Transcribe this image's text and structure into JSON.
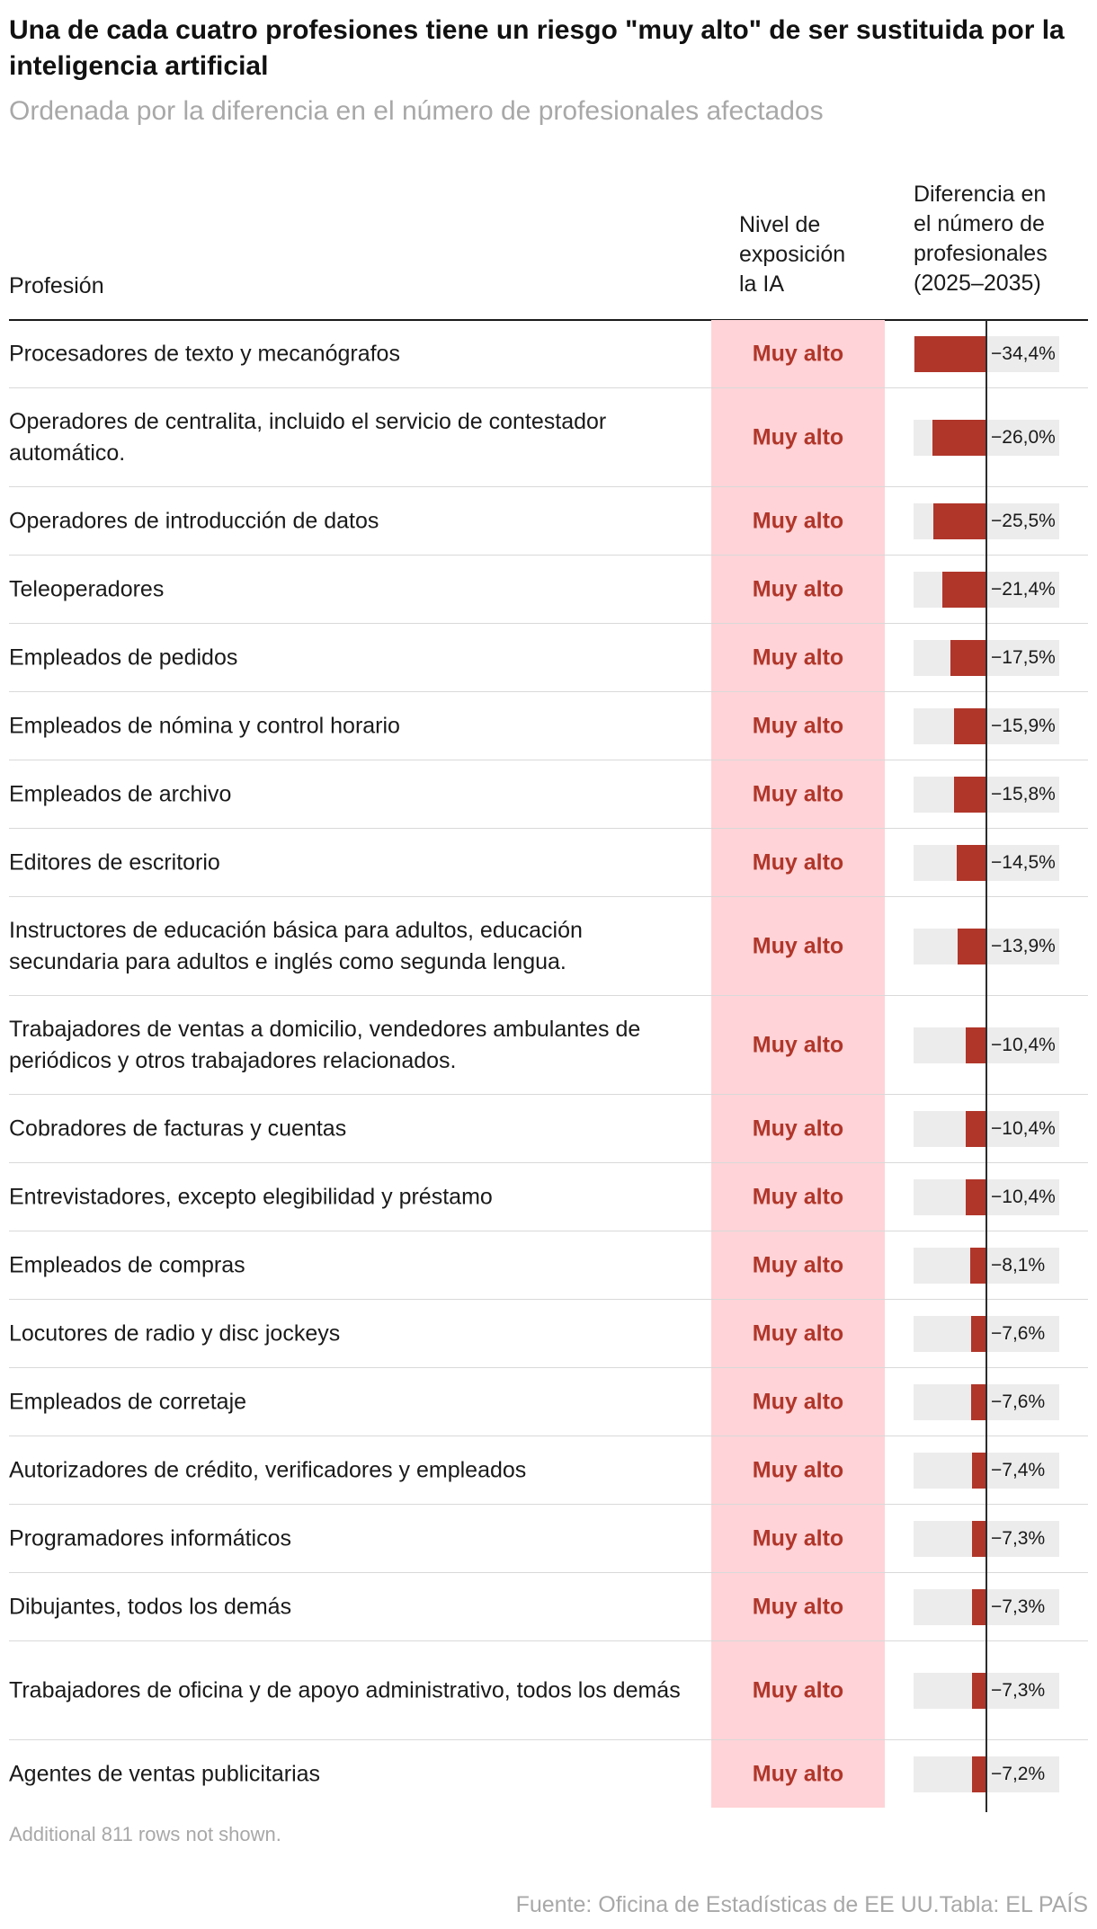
{
  "header": {
    "title": "Una de cada cuatro profesiones tiene un riesgo \"muy alto\" de ser sustituida por la inteligencia artificial",
    "subtitle": "Ordenada por la diferencia en el número de profesionales afectados"
  },
  "columns": {
    "profesion": "Profesión",
    "nivel": "Nivel de\nexposición\nla IA",
    "diferencia": "Diferencia en\nel número de\nprofesionales\n(2025–2035)"
  },
  "colors": {
    "accent": "#b0362a",
    "pink_band": "#ffd3d7",
    "bar_track": "#ececec"
  },
  "chart_data": {
    "type": "table",
    "columns": [
      "Profesión",
      "Nivel de exposición la IA",
      "Diferencia en el número de profesionales (2025–2035)"
    ],
    "rows": [
      {
        "profesion": "Procesadores de texto y mecanógrafos",
        "nivel": "Muy alto",
        "value": -34.4,
        "label": "−34,4%"
      },
      {
        "profesion": "Operadores de centralita, incluido el servicio de contestador automático.",
        "nivel": "Muy alto",
        "value": -26.0,
        "label": "−26,0%"
      },
      {
        "profesion": "Operadores de introducción de datos",
        "nivel": "Muy alto",
        "value": -25.5,
        "label": "−25,5%"
      },
      {
        "profesion": "Teleoperadores",
        "nivel": "Muy alto",
        "value": -21.4,
        "label": "−21,4%"
      },
      {
        "profesion": "Empleados de pedidos",
        "nivel": "Muy alto",
        "value": -17.5,
        "label": "−17,5%"
      },
      {
        "profesion": "Empleados de nómina y control horario",
        "nivel": "Muy alto",
        "value": -15.9,
        "label": "−15,9%"
      },
      {
        "profesion": "Empleados de archivo",
        "nivel": "Muy alto",
        "value": -15.8,
        "label": "−15,8%"
      },
      {
        "profesion": "Editores de escritorio",
        "nivel": "Muy alto",
        "value": -14.5,
        "label": "−14,5%"
      },
      {
        "profesion": "Instructores de educación básica para adultos, educación secundaria para adultos e inglés como segunda lengua.",
        "nivel": "Muy alto",
        "value": -13.9,
        "label": "−13,9%"
      },
      {
        "profesion": "Trabajadores de ventas a domicilio, vendedores ambulantes de periódicos y otros trabajadores relacionados.",
        "nivel": "Muy alto",
        "value": -10.4,
        "label": "−10,4%"
      },
      {
        "profesion": "Cobradores de facturas y cuentas",
        "nivel": "Muy alto",
        "value": -10.4,
        "label": "−10,4%"
      },
      {
        "profesion": "Entrevistadores, excepto elegibilidad y préstamo",
        "nivel": "Muy alto",
        "value": -10.4,
        "label": "−10,4%"
      },
      {
        "profesion": "Empleados de compras",
        "nivel": "Muy alto",
        "value": -8.1,
        "label": "−8,1%"
      },
      {
        "profesion": "Locutores de radio y disc jockeys",
        "nivel": "Muy alto",
        "value": -7.6,
        "label": "−7,6%"
      },
      {
        "profesion": "Empleados de corretaje",
        "nivel": "Muy alto",
        "value": -7.6,
        "label": "−7,6%"
      },
      {
        "profesion": "Autorizadores de crédito, verificadores y empleados",
        "nivel": "Muy alto",
        "value": -7.4,
        "label": "−7,4%"
      },
      {
        "profesion": "Programadores informáticos",
        "nivel": "Muy alto",
        "value": -7.3,
        "label": "−7,3%"
      },
      {
        "profesion": "Dibujantes, todos los demás",
        "nivel": "Muy alto",
        "value": -7.3,
        "label": "−7,3%"
      },
      {
        "profesion": "Trabajadores de oficina y de apoyo administrativo, todos los demás",
        "nivel": "Muy alto",
        "value": -7.3,
        "label": "−7,3%"
      },
      {
        "profesion": "Agentes de ventas publicitarias",
        "nivel": "Muy alto",
        "value": -7.2,
        "label": "−7,2%"
      }
    ]
  },
  "footer": {
    "note": "Additional 811 rows not shown.",
    "source": "Fuente: Oficina de Estadísticas de EE UU.Tabla: EL PAÍS"
  }
}
